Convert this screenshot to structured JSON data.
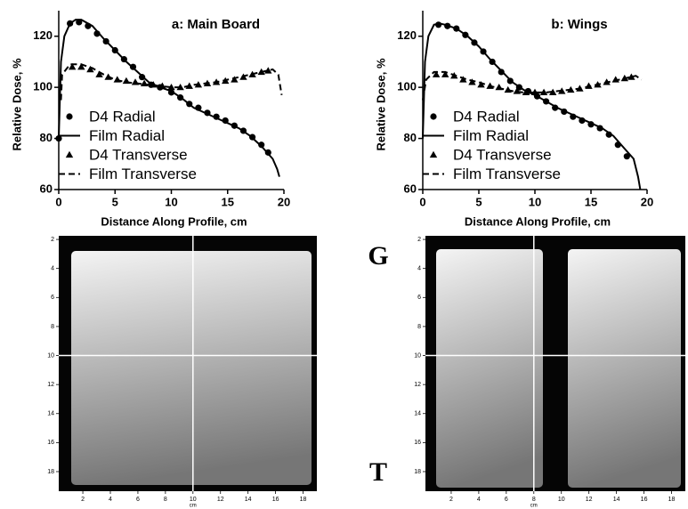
{
  "chart_data": [
    {
      "type": "line",
      "title": "a: Main Board",
      "xlabel": "Distance Along Profile, cm",
      "ylabel": "Relative Dose, %",
      "xlim": [
        0,
        20
      ],
      "ylim": [
        60,
        130
      ],
      "xticks": [
        0,
        5,
        10,
        15,
        20
      ],
      "yticks": [
        60,
        80,
        100,
        120
      ],
      "series": [
        {
          "name": "D4 Radial",
          "color": "#000000",
          "marker": "circle",
          "x": [
            0,
            1,
            1.8,
            2.6,
            3.4,
            4.2,
            5,
            5.8,
            6.6,
            7.4,
            8.2,
            9,
            10,
            10.8,
            11.6,
            12.4,
            13.2,
            14,
            14.8,
            15.6,
            16.4,
            17.2,
            18,
            18.6
          ],
          "values": [
            80,
            125,
            125.5,
            124,
            121,
            118,
            114.5,
            111,
            108,
            104,
            101,
            100,
            98,
            96,
            93.5,
            92,
            90,
            88.5,
            87,
            85,
            83,
            80.5,
            77.5,
            74.5
          ]
        },
        {
          "name": "Film Radial",
          "color": "#000000",
          "dash": false,
          "x": [
            0,
            0.2,
            0.5,
            1,
            1.5,
            2,
            3,
            4,
            5,
            6,
            7,
            8,
            9,
            10,
            11,
            12,
            13,
            14,
            15,
            16,
            17,
            18,
            19,
            19.4,
            19.6
          ],
          "values": [
            80,
            110,
            120,
            125,
            126.5,
            126.5,
            124,
            119,
            114.5,
            110,
            106,
            102,
            100,
            98.5,
            95.5,
            92,
            90,
            88,
            86,
            84,
            81,
            77,
            72,
            68,
            65
          ]
        },
        {
          "name": "D4 Transverse",
          "color": "#000000",
          "marker": "triangle",
          "x": [
            1.2,
            2,
            2.8,
            3.6,
            4.4,
            5.2,
            6,
            6.8,
            7.6,
            8.4,
            9.2,
            10,
            10.8,
            11.6,
            12.4,
            13.2,
            14,
            14.8,
            15.6,
            16.4,
            17.2,
            18,
            18.6
          ],
          "values": [
            108,
            108,
            107,
            105,
            104,
            103,
            102.5,
            102,
            101.5,
            101,
            100.5,
            100,
            100,
            100.5,
            101,
            101.5,
            102,
            102.5,
            103,
            104,
            105,
            106,
            106.5
          ]
        },
        {
          "name": "Film Transverse",
          "color": "#000000",
          "dash": true,
          "x": [
            0.2,
            0.3,
            1,
            2,
            3,
            4,
            5,
            6,
            7,
            8,
            9,
            10,
            11,
            12,
            13,
            14,
            15,
            16,
            17,
            18,
            19,
            19.5,
            19.8
          ],
          "values": [
            95,
            105,
            109,
            109,
            107.5,
            105,
            103,
            102,
            101.5,
            101,
            100.5,
            100,
            100,
            101,
            101.5,
            102,
            103,
            104,
            105,
            106,
            107,
            105,
            97
          ]
        }
      ]
    },
    {
      "type": "line",
      "title": "b: Wings",
      "xlabel": "Distance Along Profile, cm",
      "ylabel": "Relative Dose, %",
      "xlim": [
        0,
        20
      ],
      "ylim": [
        60,
        130
      ],
      "xticks": [
        0,
        5,
        10,
        15,
        20
      ],
      "yticks": [
        60,
        80,
        100,
        120
      ],
      "series": [
        {
          "name": "D4 Radial",
          "color": "#000000",
          "marker": "circle",
          "x": [
            1.4,
            2.2,
            3,
            3.8,
            4.6,
            5.4,
            6.2,
            7,
            7.8,
            8.6,
            9.4,
            10.2,
            11,
            11.8,
            12.6,
            13.4,
            14.2,
            15,
            15.8,
            16.6,
            17.4,
            18.2
          ],
          "values": [
            124.5,
            124,
            123,
            120.5,
            117.5,
            114,
            110,
            106,
            102.5,
            100,
            98.5,
            96.5,
            94.5,
            92,
            90.5,
            88.5,
            87,
            85.5,
            84,
            81.5,
            77.5,
            73
          ]
        },
        {
          "name": "Film Radial",
          "color": "#000000",
          "dash": false,
          "x": [
            0,
            0.2,
            0.5,
            1,
            1.5,
            2,
            3,
            4,
            5,
            6,
            7,
            8,
            9,
            10,
            11,
            12,
            13,
            14,
            15,
            16,
            17,
            18,
            18.8,
            19.2,
            19.4
          ],
          "values": [
            80,
            110,
            120,
            124.5,
            125,
            124.5,
            123,
            120,
            116,
            111,
            106.5,
            102,
            99,
            97,
            94.5,
            92,
            90,
            88,
            86,
            84,
            81,
            76,
            72,
            65,
            60
          ]
        },
        {
          "name": "D4 Transverse",
          "color": "#000000",
          "marker": "triangle",
          "x": [
            1.2,
            2,
            2.8,
            3.6,
            4.4,
            5.2,
            6,
            6.8,
            7.6,
            8.4,
            9.2,
            10,
            10.8,
            11.6,
            12.4,
            13.2,
            14,
            14.8,
            15.6,
            16.4,
            17.2,
            18,
            18.6
          ],
          "values": [
            105,
            105,
            104.5,
            103,
            102,
            101,
            100.5,
            100,
            99,
            98.5,
            98,
            98,
            98,
            98,
            98.5,
            99,
            99.5,
            100.5,
            101,
            102,
            103,
            103.5,
            104
          ]
        },
        {
          "name": "Film Transverse",
          "color": "#000000",
          "dash": true,
          "x": [
            0,
            0.3,
            1,
            2,
            3,
            4,
            5,
            6,
            7,
            8,
            9,
            10,
            11,
            12,
            13,
            14,
            15,
            16,
            17,
            18,
            19,
            19.5
          ],
          "values": [
            95,
            103,
            106,
            106,
            104.5,
            103,
            102,
            100.5,
            99.5,
            98.5,
            98,
            98,
            98,
            98.5,
            99,
            99.5,
            100.5,
            101.5,
            102.5,
            103.5,
            104.5,
            103
          ]
        }
      ]
    },
    {
      "type": "image",
      "xlabel": "cm",
      "xlim": [
        0.25,
        19
      ],
      "ylim": [
        1.75,
        19.35
      ],
      "y_reversed": true,
      "xticks": [
        2,
        4,
        6,
        8,
        10,
        12,
        14,
        16,
        18
      ],
      "yticks": [
        2,
        4,
        6,
        8,
        10,
        12,
        14,
        16,
        18
      ],
      "crosshair_x": 10,
      "crosshair_y": 10
    },
    {
      "type": "image",
      "xlabel": "cm",
      "xlim": [
        0.13,
        19
      ],
      "ylim": [
        1.75,
        19.35
      ],
      "y_reversed": true,
      "xticks": [
        2,
        4,
        6,
        8,
        10,
        12,
        14,
        16,
        18
      ],
      "yticks": [
        2,
        4,
        6,
        8,
        10,
        12,
        14,
        16,
        18
      ],
      "crosshair_x": 8,
      "crosshair_y": 10
    }
  ],
  "annotations": [
    "G",
    "T"
  ]
}
